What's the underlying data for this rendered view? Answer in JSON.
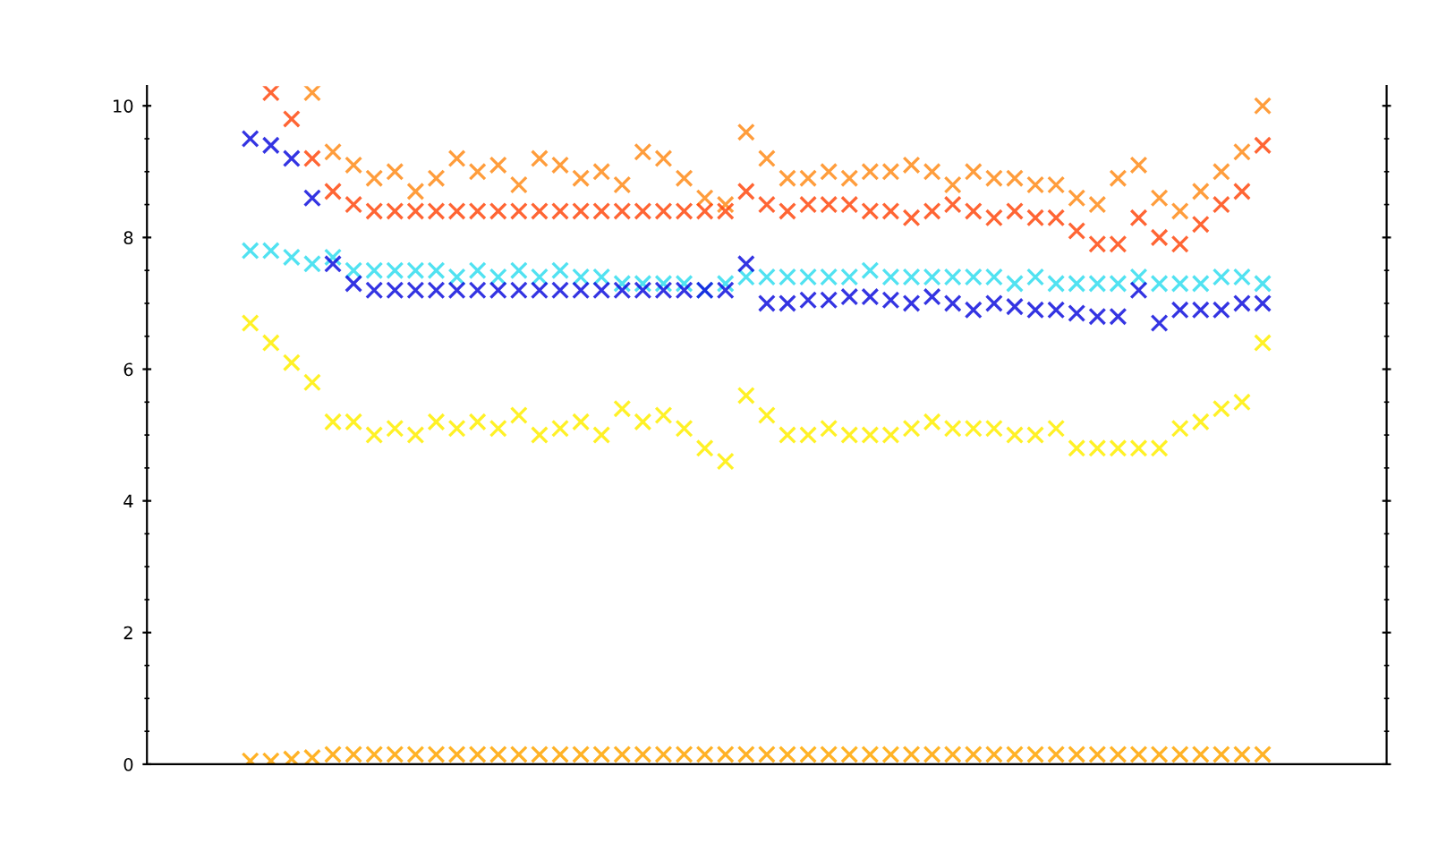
{
  "chart_data": {
    "type": "scatter",
    "marker": "cross",
    "grid": false,
    "legend": false,
    "categories": [
      null,
      null,
      null,
      null,
      null,
      null,
      null,
      null,
      null,
      null,
      null,
      null,
      null,
      null,
      null,
      null,
      null,
      null,
      null,
      null,
      null,
      null,
      null,
      null,
      null,
      null,
      null,
      null,
      null,
      null,
      null,
      null,
      null,
      null,
      null,
      null,
      null,
      null,
      null,
      null,
      null,
      null,
      null,
      null,
      null,
      null,
      null,
      null,
      null,
      null,
      null,
      null,
      null,
      null,
      null,
      null,
      null,
      null,
      null,
      null,
      null
    ],
    "ylim": [
      0,
      10.3
    ],
    "yticks": [
      0,
      2,
      4,
      6,
      8,
      10
    ],
    "series": [
      {
        "color": "#ff8c1a",
        "values": [
          null,
          null,
          null,
          null,
          null,
          null,
          null,
          null,
          10.2,
          9.3,
          9.1,
          8.9,
          9.0,
          8.7,
          8.9,
          9.2,
          9.0,
          9.1,
          8.8,
          9.2,
          9.1,
          8.9,
          9.0,
          8.8,
          9.3,
          9.2,
          8.9,
          8.6,
          8.5,
          9.6,
          9.2,
          8.9,
          8.9,
          9.0,
          8.9,
          9.0,
          9.0,
          9.1,
          9.0,
          8.8,
          9.0,
          8.9,
          8.9,
          8.8,
          8.8,
          8.6,
          8.5,
          8.9,
          9.1,
          8.6,
          8.4,
          8.7,
          9.0,
          9.3,
          10.0,
          null,
          null,
          null,
          null,
          null,
          null
        ]
      },
      {
        "color": "#ff4a10",
        "values": [
          null,
          null,
          null,
          null,
          null,
          null,
          10.2,
          9.8,
          9.2,
          8.7,
          8.5,
          8.4,
          8.4,
          8.4,
          8.4,
          8.4,
          8.4,
          8.4,
          8.4,
          8.4,
          8.4,
          8.4,
          8.4,
          8.4,
          8.4,
          8.4,
          8.4,
          8.4,
          8.4,
          8.7,
          8.5,
          8.4,
          8.5,
          8.5,
          8.5,
          8.4,
          8.4,
          8.3,
          8.4,
          8.5,
          8.4,
          8.3,
          8.4,
          8.3,
          8.3,
          8.1,
          7.9,
          7.9,
          8.3,
          8.0,
          7.9,
          8.2,
          8.5,
          8.7,
          9.4,
          null,
          null,
          null,
          null,
          null,
          null
        ]
      },
      {
        "color": "#33ddee",
        "values": [
          null,
          null,
          null,
          null,
          null,
          7.8,
          7.8,
          7.7,
          7.6,
          7.7,
          7.5,
          7.5,
          7.5,
          7.5,
          7.5,
          7.4,
          7.5,
          7.4,
          7.5,
          7.4,
          7.5,
          7.4,
          7.4,
          7.3,
          7.3,
          7.3,
          7.3,
          7.2,
          7.3,
          7.4,
          7.4,
          7.4,
          7.4,
          7.4,
          7.4,
          7.5,
          7.4,
          7.4,
          7.4,
          7.4,
          7.4,
          7.4,
          7.3,
          7.4,
          7.3,
          7.3,
          7.3,
          7.3,
          7.4,
          7.3,
          7.3,
          7.3,
          7.4,
          7.4,
          7.3,
          null,
          null,
          null,
          null,
          null,
          null
        ]
      },
      {
        "color": "#1010dd",
        "values": [
          null,
          null,
          null,
          null,
          null,
          9.5,
          9.4,
          9.2,
          8.6,
          7.6,
          7.3,
          7.2,
          7.2,
          7.2,
          7.2,
          7.2,
          7.2,
          7.2,
          7.2,
          7.2,
          7.2,
          7.2,
          7.2,
          7.2,
          7.2,
          7.2,
          7.2,
          7.2,
          7.2,
          7.6,
          7.0,
          7.0,
          7.05,
          7.05,
          7.1,
          7.1,
          7.05,
          7.0,
          7.1,
          7.0,
          6.9,
          7.0,
          6.95,
          6.9,
          6.9,
          6.85,
          6.8,
          6.8,
          7.2,
          6.7,
          6.9,
          6.9,
          6.9,
          7.0,
          7.0,
          null,
          null,
          null,
          null,
          null,
          null
        ]
      },
      {
        "color": "#ffee00",
        "values": [
          null,
          null,
          null,
          null,
          null,
          6.7,
          6.4,
          6.1,
          5.8,
          5.2,
          5.2,
          5.0,
          5.1,
          5.0,
          5.2,
          5.1,
          5.2,
          5.1,
          5.3,
          5.0,
          5.1,
          5.2,
          5.0,
          5.4,
          5.2,
          5.3,
          5.1,
          4.8,
          4.6,
          5.6,
          5.3,
          5.0,
          5.0,
          5.1,
          5.0,
          5.0,
          5.0,
          5.1,
          5.2,
          5.1,
          5.1,
          5.1,
          5.0,
          5.0,
          5.1,
          4.8,
          4.8,
          4.8,
          4.8,
          4.8,
          5.1,
          5.2,
          5.4,
          5.5,
          6.4,
          null,
          null,
          null,
          null,
          null,
          null
        ]
      },
      {
        "color": "#ffa500",
        "values": [
          null,
          null,
          null,
          null,
          null,
          0.05,
          0.05,
          0.08,
          0.1,
          0.15,
          0.15,
          0.15,
          0.15,
          0.15,
          0.15,
          0.15,
          0.15,
          0.15,
          0.15,
          0.15,
          0.15,
          0.15,
          0.15,
          0.15,
          0.15,
          0.15,
          0.15,
          0.15,
          0.15,
          0.15,
          0.15,
          0.15,
          0.15,
          0.15,
          0.15,
          0.15,
          0.15,
          0.15,
          0.15,
          0.15,
          0.15,
          0.15,
          0.15,
          0.15,
          0.15,
          0.15,
          0.15,
          0.15,
          0.15,
          0.15,
          0.15,
          0.15,
          0.15,
          0.15,
          0.15,
          null,
          null,
          null,
          null,
          null,
          null
        ]
      }
    ]
  }
}
